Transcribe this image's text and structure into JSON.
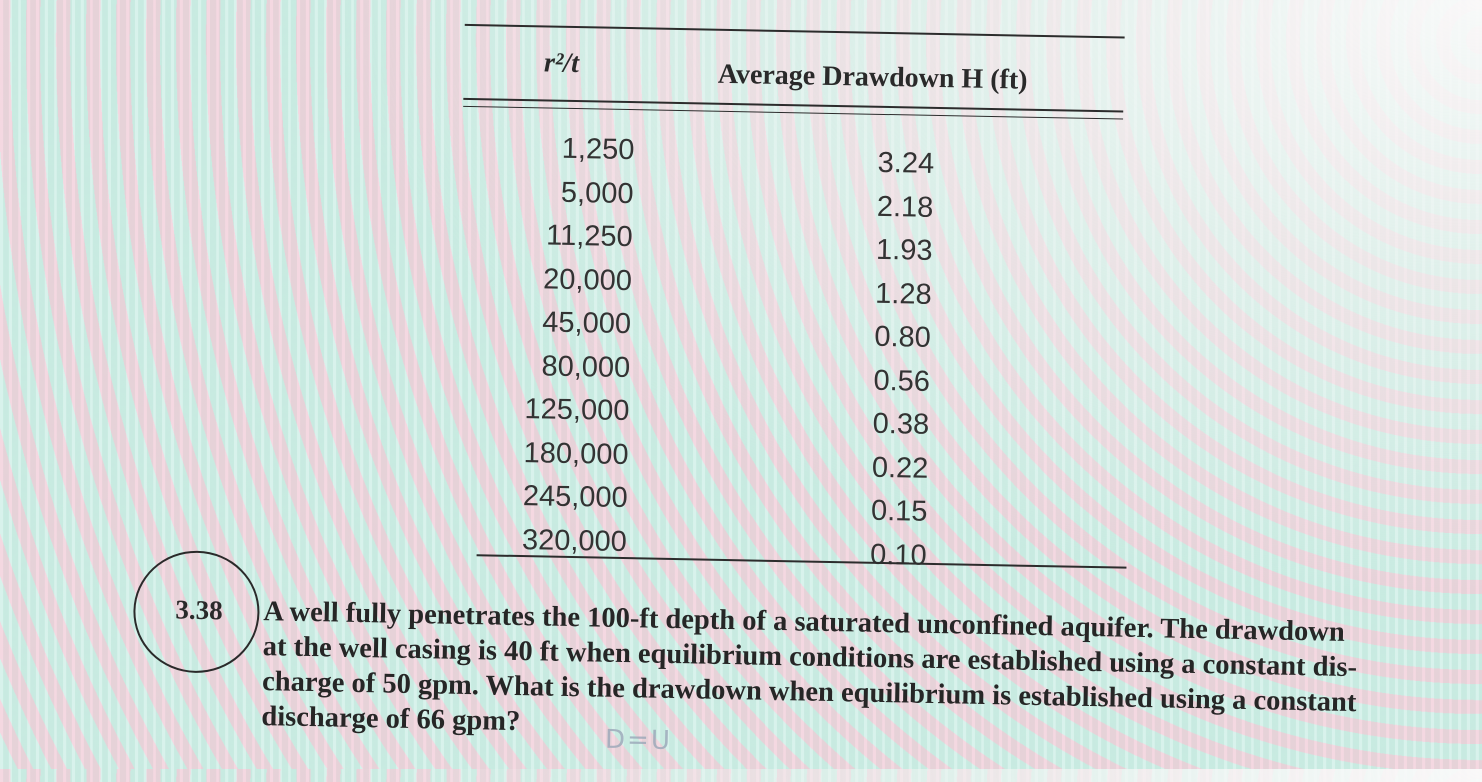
{
  "table": {
    "headers": {
      "r2t": "r²/t",
      "drawdown": "Average Drawdown H (ft)"
    },
    "rows": [
      {
        "r2t": "1,250",
        "h": "3.24"
      },
      {
        "r2t": "5,000",
        "h": "2.18"
      },
      {
        "r2t": "11,250",
        "h": "1.93"
      },
      {
        "r2t": "20,000",
        "h": "1.28"
      },
      {
        "r2t": "45,000",
        "h": "0.80"
      },
      {
        "r2t": "80,000",
        "h": "0.56"
      },
      {
        "r2t": "125,000",
        "h": "0.38"
      },
      {
        "r2t": "180,000",
        "h": "0.22"
      },
      {
        "r2t": "245,000",
        "h": "0.15"
      },
      {
        "r2t": "320,000",
        "h": "0.10"
      }
    ]
  },
  "problem": {
    "number": "3.38",
    "lines": [
      "A well fully penetrates the 100-ft depth of a saturated unconfined aquifer. The drawdown",
      "at the well casing is 40 ft when equilibrium conditions are established using a constant dis-",
      "charge of 50 gpm. What is the drawdown when equilibrium is established using a constant",
      "discharge of 66 gpm?"
    ]
  },
  "handwriting": {
    "note": "D=U"
  }
}
